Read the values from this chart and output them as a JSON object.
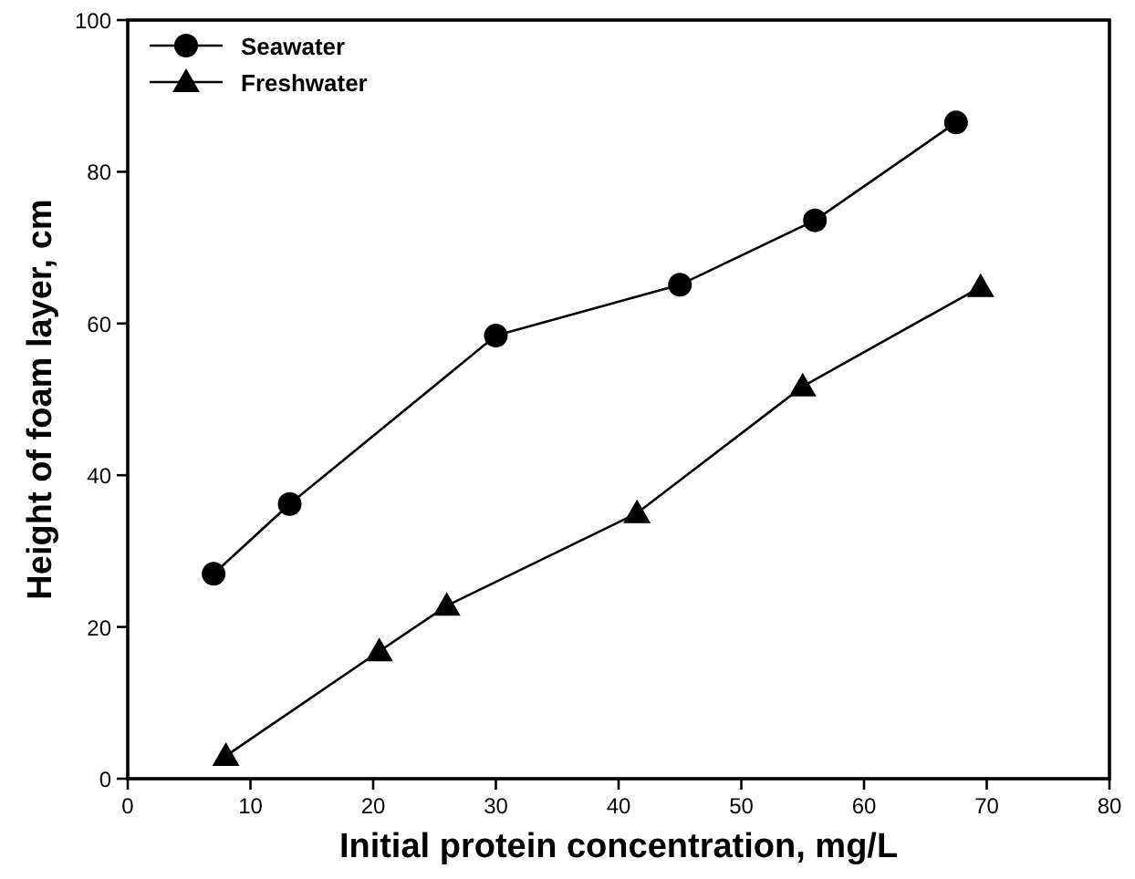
{
  "chart_data": {
    "type": "line",
    "xlabel": "Initial protein concentration, mg/L",
    "ylabel": "Height of foam layer, cm",
    "xlim": [
      0,
      80
    ],
    "xticks": [
      0,
      10,
      20,
      30,
      40,
      50,
      60,
      70,
      80
    ],
    "ylim": [
      0,
      100
    ],
    "yticks": [
      0,
      20,
      40,
      60,
      80,
      100
    ],
    "legend": "top left",
    "grid": false,
    "series": [
      {
        "name": "Seawater",
        "color": "#000000",
        "marker": "circle",
        "x": [
          7,
          13.2,
          30,
          45,
          56,
          67.5
        ],
        "values": [
          27,
          36.2,
          58.4,
          65.1,
          73.6,
          86.5
        ]
      },
      {
        "name": "Freshwater",
        "color": "#000000",
        "marker": "triangle",
        "x": [
          8,
          20.5,
          26,
          41.5,
          55,
          69.5
        ],
        "values": [
          3,
          16.8,
          22.8,
          35,
          51.7,
          64.8
        ]
      }
    ]
  }
}
